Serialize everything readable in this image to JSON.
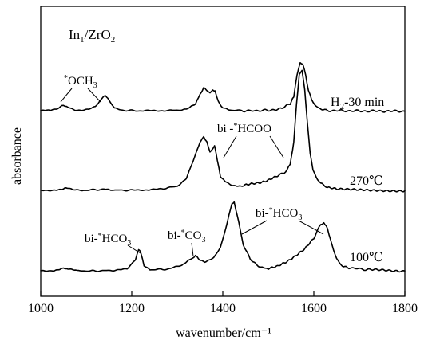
{
  "chart_data": {
    "type": "line",
    "sample": {
      "base": "In",
      "sub1": "1",
      "mid": "/ZrO",
      "sub2": "2"
    },
    "xlabel": "wavenumber/cm⁻¹",
    "ylabel": "absorbance",
    "xlim": [
      1000,
      1800
    ],
    "x_ticks": [
      1000,
      1200,
      1400,
      1600,
      1800
    ],
    "x_tick_labels": [
      "1000",
      "1200",
      "1400",
      "1600",
      "1800"
    ],
    "y_ticks": false,
    "series": [
      {
        "name": "H₂-30 min",
        "label_parts": {
          "main": "H",
          "sub": "2",
          "rest": "-30 min"
        },
        "points": [
          [
            1000,
            0.5
          ],
          [
            1020,
            0.9
          ],
          [
            1040,
            3.0
          ],
          [
            1050,
            5.0
          ],
          [
            1060,
            3.5
          ],
          [
            1075,
            1.5
          ],
          [
            1090,
            1.0
          ],
          [
            1105,
            1.5
          ],
          [
            1120,
            4.0
          ],
          [
            1135,
            11.0
          ],
          [
            1142,
            13.0
          ],
          [
            1150,
            9.0
          ],
          [
            1162,
            2.5
          ],
          [
            1180,
            1.0
          ],
          [
            1220,
            0.5
          ],
          [
            1280,
            0.8
          ],
          [
            1320,
            1.5
          ],
          [
            1340,
            6.0
          ],
          [
            1350,
            14.0
          ],
          [
            1358,
            19.0
          ],
          [
            1366,
            17.0
          ],
          [
            1372,
            15.0
          ],
          [
            1378,
            17.5
          ],
          [
            1383,
            16.5
          ],
          [
            1390,
            8.0
          ],
          [
            1400,
            3.0
          ],
          [
            1420,
            1.0
          ],
          [
            1460,
            0.5
          ],
          [
            1500,
            1.0
          ],
          [
            1530,
            2.5
          ],
          [
            1548,
            6.0
          ],
          [
            1556,
            12.0
          ],
          [
            1563,
            30.0
          ],
          [
            1570,
            40.0
          ],
          [
            1576,
            38.0
          ],
          [
            1582,
            30.0
          ],
          [
            1588,
            18.0
          ],
          [
            1595,
            10.0
          ],
          [
            1602,
            5.0
          ],
          [
            1612,
            2.0
          ],
          [
            1630,
            0.8
          ],
          [
            1700,
            0.4
          ],
          [
            1800,
            0.2
          ]
        ]
      },
      {
        "name": "270℃",
        "points": [
          [
            1000,
            0.5
          ],
          [
            1030,
            1.0
          ],
          [
            1050,
            2.0
          ],
          [
            1058,
            2.5
          ],
          [
            1070,
            1.0
          ],
          [
            1100,
            0.8
          ],
          [
            1140,
            1.5
          ],
          [
            1160,
            0.8
          ],
          [
            1200,
            0.7
          ],
          [
            1260,
            1.5
          ],
          [
            1300,
            4.0
          ],
          [
            1320,
            10.0
          ],
          [
            1338,
            28.0
          ],
          [
            1350,
            40.0
          ],
          [
            1358,
            44.0
          ],
          [
            1365,
            40.0
          ],
          [
            1372,
            32.0
          ],
          [
            1378,
            34.0
          ],
          [
            1382,
            37.0
          ],
          [
            1388,
            25.0
          ],
          [
            1395,
            12.0
          ],
          [
            1405,
            8.0
          ],
          [
            1420,
            5.0
          ],
          [
            1440,
            4.0
          ],
          [
            1460,
            5.5
          ],
          [
            1480,
            7.0
          ],
          [
            1500,
            9.0
          ],
          [
            1520,
            12.0
          ],
          [
            1535,
            15.0
          ],
          [
            1548,
            21.0
          ],
          [
            1556,
            40.0
          ],
          [
            1562,
            70.0
          ],
          [
            1568,
            95.0
          ],
          [
            1574,
            97.0
          ],
          [
            1580,
            82.0
          ],
          [
            1586,
            55.0
          ],
          [
            1592,
            30.0
          ],
          [
            1598,
            18.0
          ],
          [
            1605,
            12.0
          ],
          [
            1615,
            6.0
          ],
          [
            1630,
            3.0
          ],
          [
            1650,
            1.5
          ],
          [
            1700,
            1.0
          ],
          [
            1750,
            0.6
          ],
          [
            1800,
            0.3
          ]
        ]
      },
      {
        "name": "100℃",
        "points": [
          [
            1000,
            0.5
          ],
          [
            1030,
            1.0
          ],
          [
            1050,
            3.0
          ],
          [
            1060,
            2.0
          ],
          [
            1080,
            0.6
          ],
          [
            1120,
            0.5
          ],
          [
            1160,
            1.0
          ],
          [
            1190,
            2.0
          ],
          [
            1208,
            10.0
          ],
          [
            1215,
            18.0
          ],
          [
            1220,
            15.0
          ],
          [
            1227,
            5.0
          ],
          [
            1240,
            1.5
          ],
          [
            1280,
            2.0
          ],
          [
            1310,
            5.0
          ],
          [
            1330,
            10.0
          ],
          [
            1340,
            13.0
          ],
          [
            1350,
            9.0
          ],
          [
            1360,
            8.0
          ],
          [
            1380,
            11.0
          ],
          [
            1395,
            20.0
          ],
          [
            1410,
            40.0
          ],
          [
            1420,
            55.0
          ],
          [
            1425,
            56.0
          ],
          [
            1432,
            45.0
          ],
          [
            1445,
            22.0
          ],
          [
            1460,
            10.0
          ],
          [
            1475,
            5.0
          ],
          [
            1490,
            3.0
          ],
          [
            1500,
            2.5
          ],
          [
            1520,
            4.0
          ],
          [
            1540,
            8.0
          ],
          [
            1560,
            13.0
          ],
          [
            1580,
            18.0
          ],
          [
            1600,
            27.0
          ],
          [
            1615,
            38.0
          ],
          [
            1622,
            40.0
          ],
          [
            1630,
            35.0
          ],
          [
            1640,
            22.0
          ],
          [
            1650,
            10.0
          ],
          [
            1660,
            5.0
          ],
          [
            1680,
            3.0
          ],
          [
            1720,
            1.5
          ],
          [
            1800,
            0.5
          ]
        ]
      }
    ],
    "annotations": [
      {
        "id": "och3",
        "prefix": "*",
        "text": "OCH",
        "sub": "3"
      },
      {
        "id": "bi-hcoo",
        "text": "bi -",
        "sup": "*",
        "rest": "HCOO"
      },
      {
        "id": "bi-hco3-left",
        "text": "bi-",
        "sup": "*",
        "rest": "HCO",
        "sub": "3"
      },
      {
        "id": "bi-co3",
        "text": "bi-",
        "sup": "*",
        "rest": "CO",
        "sub": "3"
      },
      {
        "id": "bi-hco3-right",
        "text": "bi-",
        "sup": "*",
        "rest": "HCO",
        "sub": "3"
      }
    ]
  }
}
